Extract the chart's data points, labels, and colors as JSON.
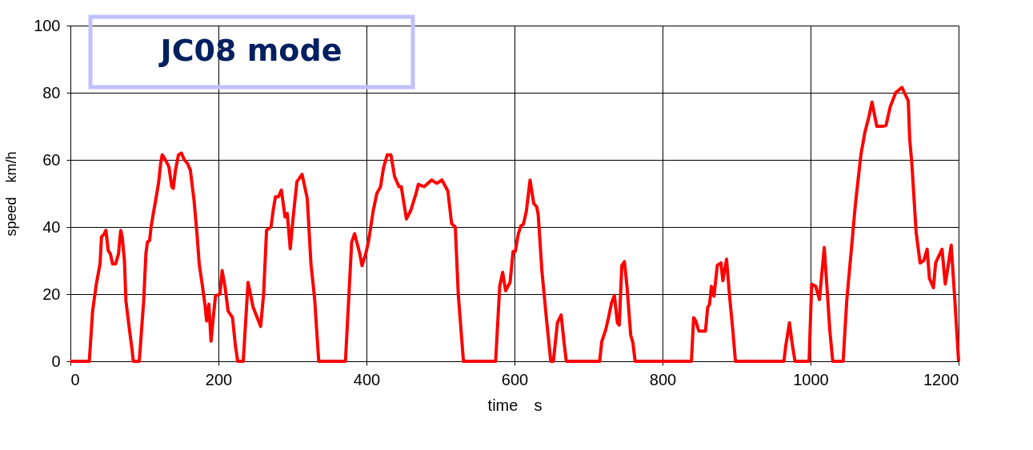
{
  "chart_data": {
    "type": "line",
    "title": "JC08 mode",
    "xlabel": "time　s",
    "ylabel": "speed　km/h",
    "xlim": [
      0,
      1200
    ],
    "xticks": [
      0,
      200,
      400,
      600,
      800,
      1000,
      1200
    ],
    "ylim": [
      0,
      100
    ],
    "yticks": [
      0,
      20,
      40,
      60,
      80,
      100
    ],
    "grid": true,
    "line_style": "solid",
    "series": [
      {
        "color": "#ff0000",
        "x": [
          0,
          25.5,
          30,
          35,
          40,
          42,
          45.7,
          48,
          51,
          54,
          57,
          61,
          65,
          67,
          68,
          70,
          73,
          75,
          80,
          83,
          85,
          93,
          99,
          102,
          104,
          107,
          109,
          112,
          116,
          119,
          122,
          124,
          127,
          133,
          137,
          139,
          142,
          146,
          150,
          154,
          158,
          162,
          167,
          171,
          174,
          178,
          182,
          184,
          187,
          190,
          193,
          196,
          202,
          205,
          209,
          213,
          219,
          223,
          226,
          233.5,
          240,
          247,
          257,
          261,
          265,
          271,
          274,
          277,
          281,
          285,
          290,
          293,
          297,
          301,
          306,
          313,
          320,
          325,
          330,
          335.5,
          371.6,
          380,
          384,
          391,
          394,
          399,
          403,
          409,
          414,
          419,
          423,
          428,
          433,
          438,
          444,
          447,
          454,
          460,
          467,
          470,
          478,
          488,
          495,
          502,
          510,
          515,
          520,
          524,
          531,
          574.5,
          580,
          584,
          588,
          594,
          598,
          601,
          605,
          608.5,
          612,
          616,
          621,
          626,
          630,
          632,
          637,
          643,
          649,
          652.5,
          658,
          663,
          667,
          670,
          715,
          718,
          723,
          727,
          731,
          735,
          739,
          741.5,
          745,
          748.5,
          752,
          757,
          760,
          763,
          839,
          842,
          845,
          849,
          858,
          861,
          863.5,
          866,
          869.5,
          874,
          879,
          881.5,
          886.5,
          891,
          895,
          898.5,
          964,
          966.5,
          971.5,
          975,
          979,
          998,
          1001.5,
          1007,
          1012,
          1018.5,
          1022.6,
          1026,
          1030,
          1044,
          1049,
          1056.6,
          1060,
          1063,
          1068,
          1073.6,
          1079,
          1083,
          1089.5,
          1097,
          1102,
          1107.6,
          1115,
          1123.5,
          1132,
          1134,
          1137,
          1142.6,
          1148,
          1153,
          1157.5,
          1160.6,
          1166,
          1169,
          1177.6,
          1182,
          1187,
          1190,
          1194.6,
          1200
        ],
        "values": [
          0,
          0,
          15,
          23,
          29,
          37,
          38,
          39,
          33,
          32,
          29,
          29,
          32,
          37,
          39,
          37,
          30,
          18,
          9,
          4,
          0,
          0,
          18,
          32,
          35.5,
          36,
          40,
          44,
          49,
          53,
          59,
          61.5,
          60.5,
          58,
          52,
          51.5,
          57,
          61.5,
          62,
          60,
          59,
          57,
          48,
          38,
          29,
          23,
          16.5,
          12,
          17,
          6,
          13,
          19.5,
          20,
          27,
          22,
          15,
          13,
          4.5,
          0,
          0,
          23.5,
          16,
          10.4,
          20,
          39,
          40,
          45,
          49,
          49,
          51,
          43,
          44,
          33.5,
          43,
          53.5,
          55.7,
          48.5,
          29,
          18.5,
          0,
          0,
          35.5,
          38,
          32,
          28.5,
          32,
          36,
          44.7,
          50,
          52,
          57.6,
          61.5,
          61.5,
          55,
          52,
          52,
          42.4,
          45,
          50,
          52.7,
          52,
          54,
          53,
          54,
          50.7,
          41,
          40,
          20,
          0,
          0,
          22.3,
          26.5,
          21,
          23.5,
          32.7,
          32.7,
          37.8,
          40.3,
          40.8,
          44.7,
          54,
          47,
          46,
          43.8,
          27,
          13,
          0,
          0,
          11.5,
          13.8,
          5.5,
          0,
          0,
          6,
          9.2,
          13,
          17.3,
          19.6,
          11.5,
          10.8,
          28.5,
          29.7,
          22.3,
          7.8,
          5.5,
          0,
          0,
          13,
          12,
          9,
          9,
          16,
          17,
          22.3,
          19.4,
          28.6,
          29.3,
          24,
          30.4,
          18.4,
          9.2,
          0,
          0,
          4.6,
          11.5,
          5.5,
          0,
          0,
          23,
          22.3,
          18.4,
          33.9,
          20.7,
          9.2,
          0,
          0,
          18.4,
          36.9,
          45.4,
          51.6,
          61.5,
          68.4,
          73,
          77.2,
          70,
          70,
          70.3,
          75.8,
          80,
          81.6,
          77.6,
          66,
          58.5,
          38.5,
          29.3,
          30,
          33.4,
          24.7,
          21.9,
          29.3,
          33.4,
          23,
          30,
          34.6,
          19.4,
          0
        ]
      }
    ]
  }
}
